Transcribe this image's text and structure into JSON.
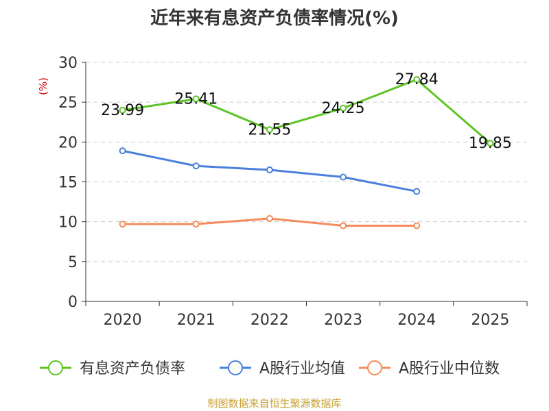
{
  "chart_data": {
    "type": "line",
    "title": "近年来有息资产负债率情况(%)",
    "ylabel": "(%)",
    "xlabel": "",
    "categories": [
      "2020",
      "2021",
      "2022",
      "2023",
      "2024",
      "2025"
    ],
    "ylim": [
      0,
      30
    ],
    "yticks": [
      0,
      5,
      10,
      15,
      20,
      25,
      30
    ],
    "grid": true,
    "legend_position": "bottom",
    "series": [
      {
        "name": "有息资产负债率",
        "color": "#5cc424",
        "values": [
          23.99,
          25.41,
          21.55,
          24.25,
          27.84,
          19.85
        ],
        "data_labels": [
          "23.99",
          "25.41",
          "21.55",
          "24.25",
          "27.84",
          "19.85"
        ]
      },
      {
        "name": "A股行业均值",
        "color": "#4a7fdc",
        "values": [
          18.9,
          17.0,
          16.5,
          15.6,
          13.8,
          null
        ]
      },
      {
        "name": "A股行业中位数",
        "color": "#f58b5b",
        "values": [
          9.7,
          9.7,
          10.4,
          9.5,
          9.5,
          null
        ]
      }
    ]
  },
  "source": "制图数据来自恒生聚源数据库"
}
